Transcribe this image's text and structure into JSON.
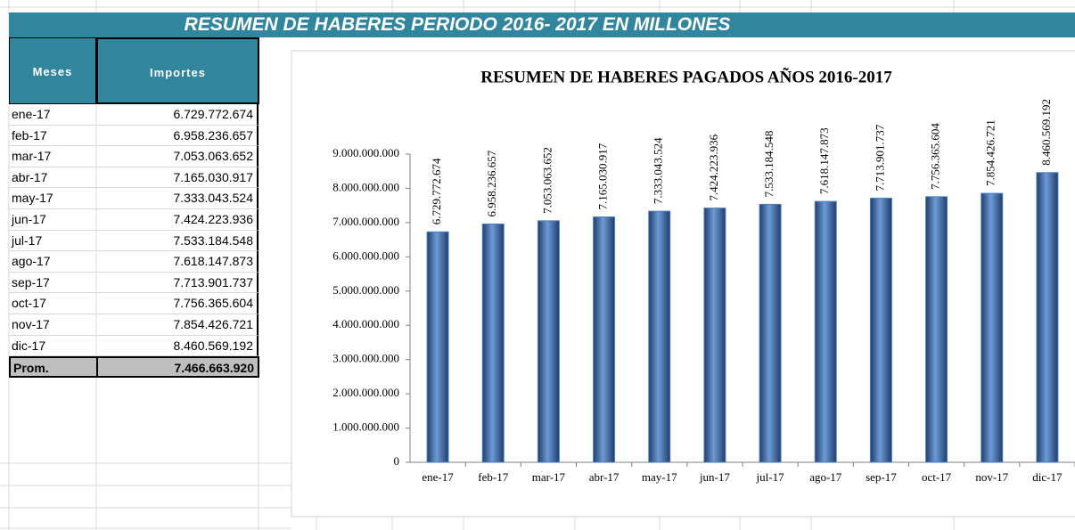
{
  "banner": "RESUMEN DE HABERES PERIODO 2016- 2017 EN MILLONES",
  "table": {
    "headers": [
      "Meses",
      "Importes"
    ],
    "rows": [
      [
        "ene-17",
        "6.729.772.674"
      ],
      [
        "feb-17",
        "6.958.236.657"
      ],
      [
        "mar-17",
        "7.053.063.652"
      ],
      [
        "abr-17",
        "7.165.030.917"
      ],
      [
        "may-17",
        "7.333.043.524"
      ],
      [
        "jun-17",
        "7.424.223.936"
      ],
      [
        "jul-17",
        "7.533.184.548"
      ],
      [
        "ago-17",
        "7.618.147.873"
      ],
      [
        "sep-17",
        "7.713.901.737"
      ],
      [
        "oct-17",
        "7.756.365.604"
      ],
      [
        "nov-17",
        "7.854.426.721"
      ],
      [
        "dic-17",
        "8.460.569.192"
      ]
    ],
    "footer": [
      "Prom.",
      "7.466.663.920"
    ]
  },
  "chart_data": {
    "type": "bar",
    "title": "RESUMEN  DE HABERES  PAGADOS AÑOS 2016-2017",
    "categories": [
      "ene-17",
      "feb-17",
      "mar-17",
      "abr-17",
      "may-17",
      "jun-17",
      "jul-17",
      "ago-17",
      "sep-17",
      "oct-17",
      "nov-17",
      "dic-17"
    ],
    "values": [
      6729772674,
      6958236657,
      7053063652,
      7165030917,
      7333043524,
      7424223936,
      7533184548,
      7618147873,
      7713901737,
      7756365604,
      7854426721,
      8460569192
    ],
    "value_labels": [
      "6.729.772.674",
      "6.958.236.657",
      "7.053.063.652",
      "7.165.030.917",
      "7.333.043.524",
      "7.424.223.936",
      "7.533.184.548",
      "7.618.147.873",
      "7.713.901.737",
      "7.756.365.604",
      "7.854.426.721",
      "8.460.569.192"
    ],
    "color": "#4f81bd",
    "ylim": [
      0,
      9000000000
    ],
    "yticks": [
      0,
      {
        "value": 1000000000,
        "label": "1.000.000.000"
      },
      {
        "value": 2000000000,
        "label": "2.000.000.000"
      },
      {
        "value": 3000000000,
        "label": "3.000.000.000"
      },
      {
        "value": 4000000000,
        "label": "4.000.000.000"
      },
      {
        "value": 5000000000,
        "label": "5.000.000.000"
      },
      {
        "value": 6000000000,
        "label": "6.000.000.000"
      },
      {
        "value": 7000000000,
        "label": "7.000.000.000"
      },
      {
        "value": 8000000000,
        "label": "8.000.000.000"
      },
      {
        "value": 9000000000,
        "label": "9.000.000.000"
      }
    ]
  }
}
